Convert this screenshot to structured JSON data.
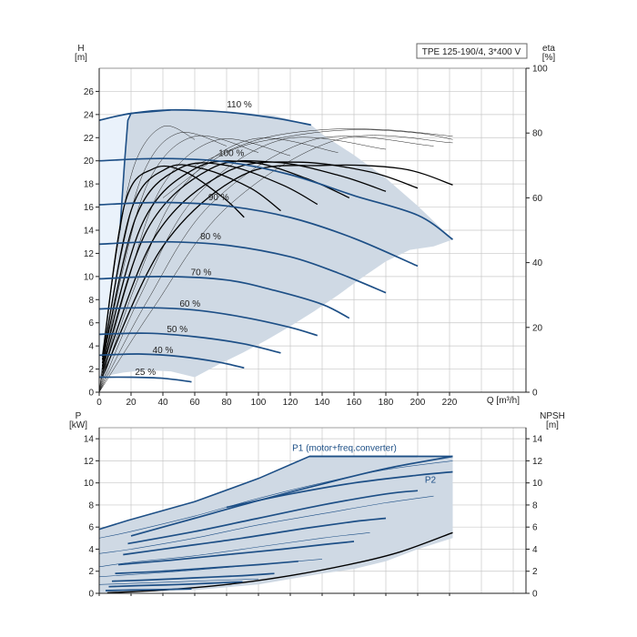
{
  "colors": {
    "envelope_fill": "#cfd9e4",
    "light_fill": "#eaf2fb",
    "curve": "#1d4f86",
    "efficiency": "#000000",
    "grid": "#c8c8c8"
  },
  "chart_data": [
    {
      "type": "line",
      "title": "TPE 125-190/4, 3*400 V",
      "xlabel": "Q [m³/h]",
      "ylabel": "H\n[m]",
      "y2label": "eta\n[%]",
      "x_ticks": [
        "0",
        "20",
        "40",
        "60",
        "80",
        "100",
        "120",
        "140",
        "160",
        "180",
        "200",
        "220"
      ],
      "y_ticks": [
        "0",
        "2",
        "4",
        "6",
        "8",
        "10",
        "12",
        "14",
        "16",
        "18",
        "20",
        "22",
        "24",
        "26"
      ],
      "y2_ticks": [
        "0",
        "20",
        "40",
        "60",
        "80",
        "100"
      ],
      "xlim": [
        0,
        268
      ],
      "ylim": [
        0,
        28
      ],
      "y2lim": [
        0,
        100
      ],
      "grid": true,
      "envelope": [
        [
          0,
          1.3
        ],
        [
          15,
          1.7
        ],
        [
          30,
          1.9
        ],
        [
          45,
          1.8
        ],
        [
          60,
          1.3
        ],
        [
          75,
          2.4
        ],
        [
          90,
          3.4
        ],
        [
          105,
          4.5
        ],
        [
          120,
          5.7
        ],
        [
          135,
          7.0
        ],
        [
          150,
          8.4
        ],
        [
          165,
          9.9
        ],
        [
          180,
          11.3
        ],
        [
          195,
          12.3
        ],
        [
          210,
          12.6
        ],
        [
          222,
          13.2
        ],
        [
          200,
          16.1
        ],
        [
          180,
          18.5
        ],
        [
          160,
          20.5
        ],
        [
          140,
          22.3
        ],
        [
          133,
          23.1
        ],
        [
          110,
          23.9
        ],
        [
          80,
          24.3
        ],
        [
          45,
          24.4
        ],
        [
          20,
          24.1
        ],
        [
          18,
          23.5
        ],
        [
          16,
          20.0
        ],
        [
          13,
          14.0
        ],
        [
          10,
          10.0
        ],
        [
          7,
          6.0
        ],
        [
          4,
          3.0
        ],
        [
          0,
          1.3
        ]
      ],
      "light_region": [
        [
          0,
          23.5
        ],
        [
          18,
          24.1
        ],
        [
          16,
          20.0
        ],
        [
          13,
          14.0
        ],
        [
          10,
          10.0
        ],
        [
          7,
          6.0
        ],
        [
          4,
          3.0
        ],
        [
          0,
          1.3
        ]
      ],
      "series": [
        {
          "name": "110 %",
          "x": [
            0,
            20,
            45,
            80,
            110,
            133
          ],
          "y": [
            23.5,
            24.1,
            24.4,
            24.2,
            23.7,
            23.1
          ]
        },
        {
          "name": "100 %",
          "x": [
            0,
            40,
            80,
            120,
            160,
            200,
            222
          ],
          "y": [
            20.0,
            20.2,
            19.9,
            18.8,
            17.0,
            15.3,
            13.2
          ]
        },
        {
          "name": "90 %",
          "x": [
            0,
            40,
            80,
            120,
            160,
            200
          ],
          "y": [
            16.2,
            16.4,
            16.1,
            15.1,
            13.3,
            10.9
          ]
        },
        {
          "name": "80 %",
          "x": [
            0,
            40,
            80,
            120,
            150,
            180
          ],
          "y": [
            12.8,
            13.0,
            12.7,
            11.7,
            10.3,
            8.6
          ]
        },
        {
          "name": "70 %",
          "x": [
            0,
            40,
            80,
            110,
            140,
            157
          ],
          "y": [
            9.8,
            10.0,
            9.7,
            8.8,
            7.6,
            6.4
          ]
        },
        {
          "name": "60 %",
          "x": [
            0,
            30,
            60,
            90,
            120,
            137
          ],
          "y": [
            7.2,
            7.3,
            7.1,
            6.5,
            5.6,
            4.9
          ]
        },
        {
          "name": "50 %",
          "x": [
            0,
            30,
            60,
            90,
            114
          ],
          "y": [
            5.0,
            5.1,
            4.8,
            4.2,
            3.4
          ]
        },
        {
          "name": "40 %",
          "x": [
            0,
            25,
            50,
            75,
            91
          ],
          "y": [
            3.2,
            3.3,
            3.1,
            2.6,
            2.1
          ]
        },
        {
          "name": "25 %",
          "x": [
            0,
            20,
            40,
            58
          ],
          "y": [
            1.3,
            1.3,
            1.2,
            0.9
          ]
        }
      ],
      "efficiency_series": [
        {
          "x": [
            2,
            40,
            90,
            140,
            190,
            222
          ],
          "y": [
            5,
            45,
            67,
            70,
            69,
            64
          ]
        },
        {
          "x": [
            2,
            35,
            80,
            125,
            170,
            200
          ],
          "y": [
            6,
            48,
            68,
            71,
            68,
            63
          ]
        },
        {
          "x": [
            2,
            30,
            70,
            110,
            150,
            180
          ],
          "y": [
            7,
            50,
            69,
            71,
            67,
            62
          ]
        },
        {
          "x": [
            2,
            27,
            60,
            95,
            130,
            157
          ],
          "y": [
            8,
            52,
            69,
            71,
            66,
            60
          ]
        },
        {
          "x": [
            2,
            23,
            50,
            80,
            115,
            137
          ],
          "y": [
            9,
            54,
            69,
            70,
            64,
            58
          ]
        },
        {
          "x": [
            2,
            20,
            42,
            65,
            95,
            114
          ],
          "y": [
            10,
            56,
            69,
            69,
            63,
            56
          ]
        },
        {
          "x": [
            2,
            16,
            34,
            54,
            78,
            91
          ],
          "y": [
            11,
            58,
            69,
            68,
            60,
            54
          ]
        }
      ],
      "efficiency_thin": [
        {
          "x": [
            0,
            10,
            22,
            40,
            60
          ],
          "y": [
            0,
            40,
            70,
            82,
            78
          ]
        },
        {
          "x": [
            0,
            12,
            28,
            50,
            80
          ],
          "y": [
            0,
            38,
            68,
            80,
            76
          ]
        },
        {
          "x": [
            0,
            14,
            32,
            60,
            100
          ],
          "y": [
            0,
            36,
            66,
            79,
            74
          ]
        },
        {
          "x": [
            0,
            18,
            40,
            75,
            120
          ],
          "y": [
            0,
            34,
            64,
            78,
            73
          ]
        },
        {
          "x": [
            0,
            22,
            50,
            95,
            150
          ],
          "y": [
            0,
            32,
            62,
            78,
            74
          ]
        },
        {
          "x": [
            0,
            26,
            60,
            115,
            180
          ],
          "y": [
            0,
            30,
            60,
            78,
            75
          ]
        },
        {
          "x": [
            0,
            30,
            70,
            135,
            210
          ],
          "y": [
            0,
            28,
            58,
            78,
            76
          ]
        },
        {
          "x": [
            0,
            34,
            80,
            150,
            222
          ],
          "y": [
            0,
            26,
            57,
            78,
            77
          ]
        },
        {
          "x": [
            40,
            80,
            120,
            160,
            200,
            222
          ],
          "y": [
            60,
            74,
            79,
            81,
            80,
            78
          ]
        },
        {
          "x": [
            60,
            100,
            140,
            180,
            222
          ],
          "y": [
            70,
            78,
            81,
            81,
            79
          ]
        }
      ]
    },
    {
      "type": "line",
      "xlabel": "",
      "ylabel": "P\n[kW]",
      "y2label": "NPSH\n[m]",
      "y_ticks": [
        "0",
        "2",
        "4",
        "6",
        "8",
        "10",
        "12",
        "14"
      ],
      "y2_ticks": [
        "0",
        "2",
        "4",
        "6",
        "8",
        "10",
        "12",
        "14"
      ],
      "xlim": [
        0,
        268
      ],
      "ylim": [
        0,
        15
      ],
      "grid": true,
      "envelope": [
        [
          0,
          0.05
        ],
        [
          30,
          0.15
        ],
        [
          60,
          0.3
        ],
        [
          100,
          0.8
        ],
        [
          140,
          1.8
        ],
        [
          160,
          2.2
        ],
        [
          180,
          2.9
        ],
        [
          200,
          4.0
        ],
        [
          222,
          5.0
        ],
        [
          222,
          12.4
        ],
        [
          200,
          12.4
        ],
        [
          160,
          12.4
        ],
        [
          132,
          12.4
        ],
        [
          100,
          10.4
        ],
        [
          60,
          8.3
        ],
        [
          18,
          6.6
        ],
        [
          0,
          5.8
        ]
      ],
      "series": [
        {
          "name": "P1 (motor+freq.converter)",
          "x": [
            132,
            160,
            200,
            222
          ],
          "y": [
            12.4,
            12.4,
            12.4,
            12.4
          ]
        },
        {
          "name": "P2",
          "x": [
            80,
            120,
            160,
            200,
            222
          ],
          "y": [
            7.8,
            9.0,
            10.0,
            10.7,
            11.0
          ]
        },
        {
          "x": [
            20,
            60,
            100,
            140,
            180,
            222
          ],
          "y": [
            5.2,
            6.8,
            8.4,
            9.9,
            11.3,
            12.4
          ]
        },
        {
          "x": [
            18,
            60,
            100,
            140,
            180,
            200
          ],
          "y": [
            4.5,
            5.6,
            6.8,
            8.0,
            9.0,
            9.3
          ]
        },
        {
          "x": [
            15,
            50,
            90,
            130,
            160,
            180
          ],
          "y": [
            3.5,
            4.2,
            5.0,
            5.9,
            6.5,
            6.8
          ]
        },
        {
          "x": [
            12,
            45,
            80,
            115,
            140,
            160
          ],
          "y": [
            2.6,
            3.0,
            3.5,
            4.0,
            4.4,
            4.7
          ]
        },
        {
          "x": [
            10,
            40,
            70,
            100,
            125
          ],
          "y": [
            1.8,
            2.0,
            2.3,
            2.6,
            2.9
          ]
        },
        {
          "x": [
            8,
            30,
            60,
            90,
            110
          ],
          "y": [
            1.1,
            1.2,
            1.4,
            1.6,
            1.8
          ]
        },
        {
          "x": [
            6,
            25,
            50,
            75,
            90
          ],
          "y": [
            0.6,
            0.7,
            0.8,
            0.95,
            1.05
          ]
        },
        {
          "x": [
            4,
            20,
            40,
            58
          ],
          "y": [
            0.25,
            0.3,
            0.35,
            0.4
          ]
        }
      ],
      "thin_series": [
        {
          "x": [
            0,
            20,
            60,
            100,
            140,
            180,
            222
          ],
          "y": [
            5.0,
            5.6,
            7.0,
            8.6,
            10.0,
            11.2,
            12.0
          ]
        },
        {
          "x": [
            0,
            20,
            60,
            100,
            140,
            180,
            210
          ],
          "y": [
            3.6,
            4.0,
            5.0,
            6.2,
            7.2,
            8.2,
            8.8
          ]
        },
        {
          "x": [
            0,
            20,
            60,
            100,
            140,
            170
          ],
          "y": [
            2.4,
            2.8,
            3.4,
            4.2,
            5.0,
            5.5
          ]
        },
        {
          "x": [
            0,
            20,
            60,
            100,
            140
          ],
          "y": [
            1.5,
            1.7,
            2.1,
            2.6,
            3.1
          ]
        },
        {
          "x": [
            0,
            20,
            60,
            100
          ],
          "y": [
            0.8,
            0.9,
            1.1,
            1.3
          ]
        }
      ],
      "npsh_series": [
        {
          "x": [
            5,
            40,
            80,
            120,
            160,
            190,
            222
          ],
          "y": [
            0.05,
            0.3,
            0.8,
            1.6,
            2.7,
            3.8,
            5.5
          ]
        }
      ]
    }
  ]
}
